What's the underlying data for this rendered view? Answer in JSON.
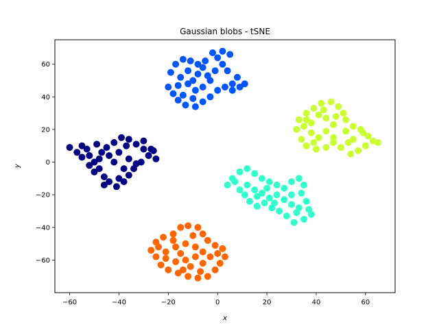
{
  "chart_data": {
    "type": "scatter",
    "title": "Gaussian blobs - tSNE",
    "xlabel": "x",
    "ylabel": "y",
    "xlim": [
      -66,
      72
    ],
    "ylim": [
      -80,
      75
    ],
    "xticks": [
      -60,
      -40,
      -20,
      0,
      20,
      40,
      60
    ],
    "yticks": [
      -60,
      -40,
      -20,
      0,
      20,
      40,
      60
    ],
    "xtick_labels": [
      "−60",
      "−40",
      "−20",
      "0",
      "20",
      "40",
      "60"
    ],
    "ytick_labels": [
      "−60",
      "−40",
      "−20",
      "0",
      "20",
      "40",
      "60"
    ],
    "grid": false,
    "legend": "none",
    "marker_radius_pt": 5,
    "series": [
      {
        "color": "#000080",
        "center": [
          -41,
          -1
        ],
        "x_range": [
          -61,
          -24
        ],
        "y_range": [
          -16,
          16
        ],
        "points": [
          [
            -60,
            9
          ],
          [
            -57,
            6
          ],
          [
            -55,
            10
          ],
          [
            -52,
            4
          ],
          [
            -50,
            0
          ],
          [
            -48,
            -4
          ],
          [
            -46,
            -9
          ],
          [
            -44,
            -12
          ],
          [
            -41,
            -15
          ],
          [
            -38,
            -12
          ],
          [
            -36,
            -8
          ],
          [
            -34,
            -4
          ],
          [
            -31,
            0
          ],
          [
            -28,
            4
          ],
          [
            -26,
            7
          ],
          [
            -25,
            2
          ],
          [
            -30,
            8
          ],
          [
            -33,
            11
          ],
          [
            -36,
            14
          ],
          [
            -39,
            15
          ],
          [
            -42,
            12
          ],
          [
            -45,
            9
          ],
          [
            -47,
            6
          ],
          [
            -49,
            11
          ],
          [
            -53,
            8
          ],
          [
            -55,
            3
          ],
          [
            -50,
            -6
          ],
          [
            -46,
            -14
          ],
          [
            -40,
            -10
          ],
          [
            -38,
            -4
          ],
          [
            -42,
            0
          ],
          [
            -44,
            4
          ],
          [
            -40,
            6
          ],
          [
            -36,
            2
          ],
          [
            -33,
            -1
          ],
          [
            -48,
            2
          ],
          [
            -52,
            -2
          ],
          [
            -37,
            10
          ],
          [
            -30,
            13
          ],
          [
            -27,
            8
          ]
        ]
      },
      {
        "color": "#0055ff",
        "center": [
          -6,
          50
        ],
        "x_range": [
          -21,
          12
        ],
        "y_range": [
          33,
          69
        ],
        "points": [
          [
            -20,
            46
          ],
          [
            -18,
            42
          ],
          [
            -16,
            38
          ],
          [
            -13,
            35
          ],
          [
            -9,
            34
          ],
          [
            -6,
            37
          ],
          [
            -3,
            40
          ],
          [
            0,
            44
          ],
          [
            3,
            46
          ],
          [
            6,
            44
          ],
          [
            9,
            46
          ],
          [
            11,
            48
          ],
          [
            8,
            52
          ],
          [
            4,
            56
          ],
          [
            2,
            60
          ],
          [
            0,
            64
          ],
          [
            -2,
            67
          ],
          [
            2,
            68
          ],
          [
            5,
            66
          ],
          [
            -5,
            62
          ],
          [
            -8,
            60
          ],
          [
            -11,
            62
          ],
          [
            -14,
            63
          ],
          [
            -17,
            60
          ],
          [
            -19,
            55
          ],
          [
            -15,
            52
          ],
          [
            -12,
            48
          ],
          [
            -9,
            44
          ],
          [
            -6,
            46
          ],
          [
            -3,
            50
          ],
          [
            -8,
            54
          ],
          [
            -12,
            56
          ],
          [
            -16,
            47
          ],
          [
            -14,
            41
          ],
          [
            -10,
            39
          ],
          [
            -4,
            53
          ],
          [
            -1,
            56
          ],
          [
            -6,
            58
          ],
          [
            -10,
            50
          ],
          [
            6,
            48
          ]
        ]
      },
      {
        "color": "#ccff33",
        "center": [
          45,
          23
        ],
        "x_range": [
          31,
          66
        ],
        "y_range": [
          4,
          38
        ],
        "points": [
          [
            32,
            20
          ],
          [
            34,
            14
          ],
          [
            36,
            10
          ],
          [
            40,
            8
          ],
          [
            44,
            9
          ],
          [
            47,
            12
          ],
          [
            50,
            9
          ],
          [
            54,
            5
          ],
          [
            57,
            7
          ],
          [
            60,
            10
          ],
          [
            63,
            13
          ],
          [
            65,
            12
          ],
          [
            61,
            16
          ],
          [
            58,
            20
          ],
          [
            55,
            22
          ],
          [
            52,
            26
          ],
          [
            51,
            30
          ],
          [
            49,
            34
          ],
          [
            46,
            37
          ],
          [
            42,
            36
          ],
          [
            39,
            33
          ],
          [
            36,
            30
          ],
          [
            33,
            26
          ],
          [
            35,
            22
          ],
          [
            38,
            18
          ],
          [
            41,
            15
          ],
          [
            44,
            19
          ],
          [
            47,
            23
          ],
          [
            44,
            27
          ],
          [
            41,
            29
          ],
          [
            38,
            24
          ],
          [
            48,
            28
          ],
          [
            52,
            19
          ],
          [
            55,
            14
          ],
          [
            59,
            18
          ],
          [
            53,
            12
          ],
          [
            43,
            32
          ],
          [
            47,
            15
          ],
          [
            39,
            12
          ],
          [
            36,
            26
          ]
        ]
      },
      {
        "color": "#33ffcc",
        "center": [
          20,
          -20
        ],
        "x_range": [
          3,
          39
        ],
        "y_range": [
          -38,
          -3
        ],
        "points": [
          [
            4,
            -14
          ],
          [
            6,
            -10
          ],
          [
            9,
            -6
          ],
          [
            12,
            -4
          ],
          [
            15,
            -7
          ],
          [
            18,
            -10
          ],
          [
            21,
            -12
          ],
          [
            24,
            -14
          ],
          [
            27,
            -16
          ],
          [
            30,
            -12
          ],
          [
            33,
            -10
          ],
          [
            35,
            -14
          ],
          [
            34,
            -19
          ],
          [
            36,
            -24
          ],
          [
            37,
            -29
          ],
          [
            38,
            -32
          ],
          [
            35,
            -35
          ],
          [
            31,
            -37
          ],
          [
            28,
            -33
          ],
          [
            25,
            -30
          ],
          [
            22,
            -28
          ],
          [
            19,
            -25
          ],
          [
            16,
            -27
          ],
          [
            13,
            -24
          ],
          [
            11,
            -20
          ],
          [
            9,
            -17
          ],
          [
            12,
            -14
          ],
          [
            15,
            -17
          ],
          [
            18,
            -19
          ],
          [
            21,
            -22
          ],
          [
            24,
            -20
          ],
          [
            27,
            -23
          ],
          [
            30,
            -26
          ],
          [
            33,
            -28
          ],
          [
            30,
            -20
          ],
          [
            20,
            -16
          ],
          [
            16,
            -21
          ],
          [
            7,
            -12
          ],
          [
            23,
            -25
          ],
          [
            32,
            -31
          ]
        ]
      },
      {
        "color": "#ff6600",
        "center": [
          -12,
          -57
        ],
        "x_range": [
          -28,
          4
        ],
        "y_range": [
          -73,
          -38
        ],
        "points": [
          [
            -27,
            -54
          ],
          [
            -25,
            -49
          ],
          [
            -22,
            -46
          ],
          [
            -18,
            -44
          ],
          [
            -15,
            -40
          ],
          [
            -12,
            -39
          ],
          [
            -8,
            -40
          ],
          [
            -6,
            -44
          ],
          [
            -4,
            -48
          ],
          [
            -1,
            -51
          ],
          [
            2,
            -53
          ],
          [
            3,
            -58
          ],
          [
            1,
            -62
          ],
          [
            -1,
            -66
          ],
          [
            -4,
            -70
          ],
          [
            -8,
            -71
          ],
          [
            -12,
            -70
          ],
          [
            -16,
            -68
          ],
          [
            -20,
            -66
          ],
          [
            -23,
            -63
          ],
          [
            -25,
            -58
          ],
          [
            -21,
            -55
          ],
          [
            -17,
            -52
          ],
          [
            -13,
            -50
          ],
          [
            -9,
            -52
          ],
          [
            -6,
            -55
          ],
          [
            -9,
            -58
          ],
          [
            -13,
            -60
          ],
          [
            -17,
            -61
          ],
          [
            -21,
            -59
          ],
          [
            -15,
            -56
          ],
          [
            -11,
            -64
          ],
          [
            -6,
            -62
          ],
          [
            -3,
            -58
          ],
          [
            -18,
            -48
          ],
          [
            -10,
            -45
          ],
          [
            -24,
            -52
          ],
          [
            -14,
            -66
          ],
          [
            -7,
            -67
          ],
          [
            0,
            -56
          ]
        ]
      }
    ]
  }
}
